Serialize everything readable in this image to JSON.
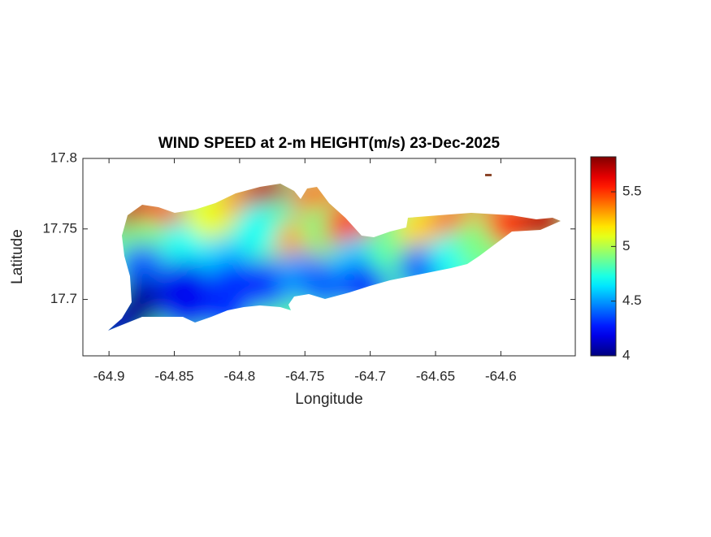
{
  "chart_data": {
    "type": "contour-map",
    "title": "WIND SPEED at 2-m HEIGHT(m/s) 23-Dec-2025",
    "xlabel": "Longitude",
    "ylabel": "Latitude",
    "xlim": [
      -64.92,
      -64.543
    ],
    "ylim": [
      17.66,
      17.8
    ],
    "xticks": [
      -64.9,
      -64.85,
      -64.8,
      -64.75,
      -64.7,
      -64.65,
      -64.6
    ],
    "yticks": [
      17.7,
      17.75,
      17.8
    ],
    "colormap": "jet",
    "clim": [
      4,
      5.82
    ],
    "cticks": [
      4,
      4.5,
      5,
      5.5
    ],
    "lon": [
      -64.878,
      -64.86,
      -64.872,
      -64.875,
      -64.875,
      -64.884,
      -64.897,
      -64.841,
      -64.841,
      -64.841,
      -64.822,
      -64.81,
      -64.804,
      -64.81,
      -64.797,
      -64.779,
      -64.785,
      -64.779,
      -64.76,
      -64.754,
      -64.754,
      -64.741,
      -64.735,
      -64.735,
      -64.716,
      -64.71,
      -64.704,
      -64.685,
      -64.673,
      -64.66,
      -64.66,
      -64.636,
      -64.636,
      -64.611,
      -64.617,
      -64.592,
      -64.567,
      -64.61
    ],
    "lat": [
      17.76,
      17.757,
      17.74,
      17.722,
      17.699,
      17.688,
      17.681,
      17.74,
      17.711,
      17.694,
      17.76,
      17.728,
      17.711,
      17.694,
      17.771,
      17.775,
      17.751,
      17.711,
      17.757,
      17.74,
      17.717,
      17.771,
      17.751,
      17.711,
      17.751,
      17.728,
      17.711,
      17.734,
      17.74,
      17.751,
      17.722,
      17.754,
      17.731,
      17.751,
      17.74,
      17.754,
      17.756,
      17.789
    ],
    "values": [
      5.7,
      5.5,
      4.9,
      4.4,
      4.1,
      4.0,
      4.1,
      4.7,
      4.2,
      4.2,
      5.1,
      4.6,
      4.3,
      4.3,
      5.3,
      5.7,
      4.7,
      4.3,
      4.8,
      5.3,
      4.5,
      5.4,
      4.9,
      4.4,
      5.5,
      4.6,
      4.3,
      4.8,
      4.9,
      5.2,
      4.4,
      5.4,
      4.7,
      5.3,
      4.9,
      5.5,
      5.7,
      5.8
    ]
  }
}
